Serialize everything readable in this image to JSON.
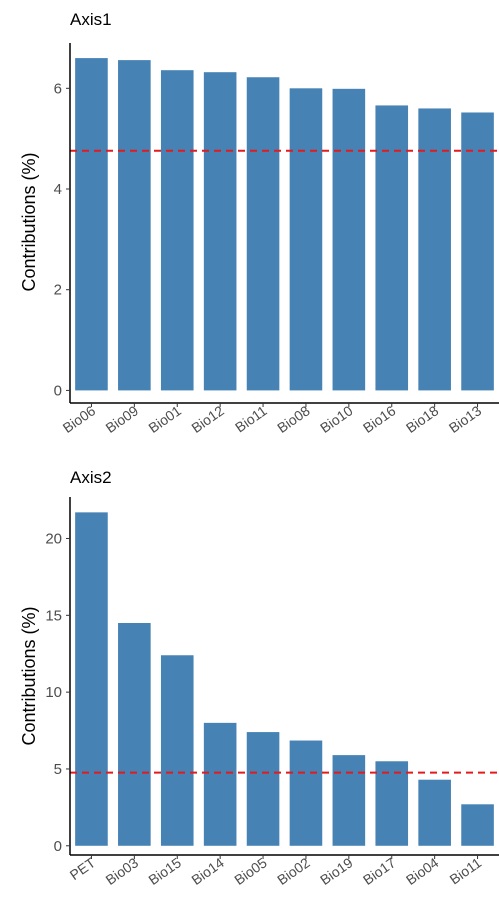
{
  "chart_data": [
    {
      "type": "bar",
      "title": "Axis1",
      "ylabel": "Contributions (%)",
      "xlabel": "",
      "categories": [
        "Bio06",
        "Bio09",
        "Bio01",
        "Bio12",
        "Bio11",
        "Bio08",
        "Bio10",
        "Bio16",
        "Bio18",
        "Bio13"
      ],
      "values": [
        6.6,
        6.56,
        6.36,
        6.32,
        6.22,
        6.0,
        5.99,
        5.66,
        5.6,
        5.52
      ],
      "reference_line": 4.76,
      "reference_line_color": "#e41a1c",
      "bar_color": "#4682b4",
      "ylim": [
        -0.25,
        6.9
      ],
      "yticks": [
        "0",
        "2",
        "4",
        "6"
      ],
      "grid": false
    },
    {
      "type": "bar",
      "title": "Axis2",
      "ylabel": "Contributions (%)",
      "xlabel": "",
      "categories": [
        "PET",
        "Bio03",
        "Bio15",
        "Bio14",
        "Bio05",
        "Bio02",
        "Bio19",
        "Bio17",
        "Bio04",
        "Bio11"
      ],
      "values": [
        21.7,
        14.5,
        12.4,
        8.0,
        7.4,
        6.85,
        5.9,
        5.5,
        4.3,
        2.7
      ],
      "reference_line": 4.76,
      "reference_line_color": "#e41a1c",
      "bar_color": "#4682b4",
      "ylim": [
        -0.6,
        22.7
      ],
      "yticks": [
        "0",
        "5",
        "10",
        "15",
        "20"
      ],
      "grid": false
    }
  ]
}
